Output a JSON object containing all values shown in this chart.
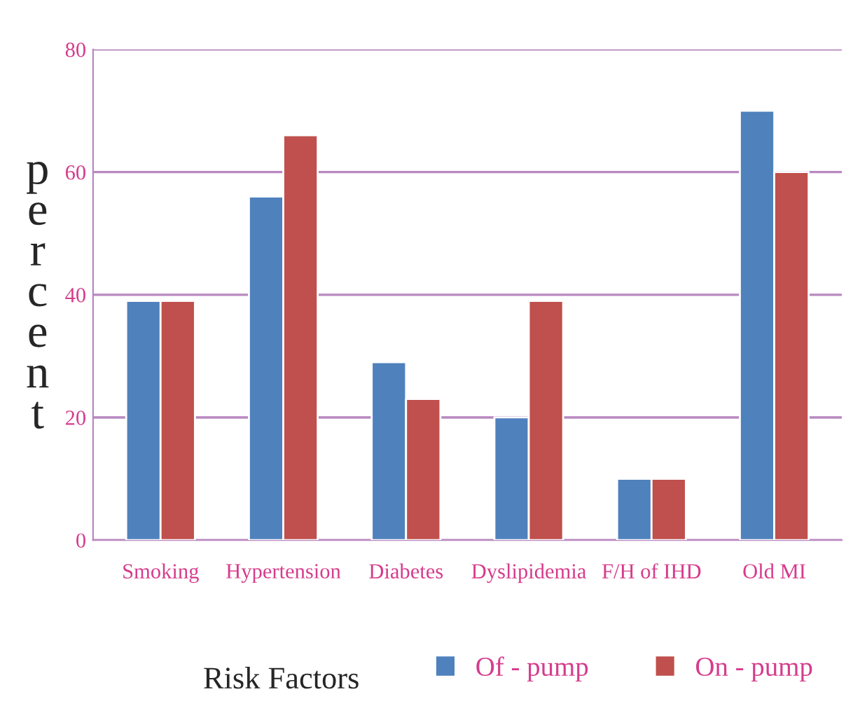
{
  "chart_data": {
    "type": "bar",
    "xlabel": "Risk Factors",
    "ylabel": "percent",
    "categories": [
      "Smoking",
      "Hypertension",
      "Diabetes",
      "Dyslipidemia",
      "F/H of IHD",
      "Old MI"
    ],
    "series": [
      {
        "name": "Of - pump",
        "color": "#4f81bd",
        "values": [
          39,
          56,
          29,
          20,
          10,
          70
        ]
      },
      {
        "name": "On - pump",
        "color": "#c0504d",
        "values": [
          39,
          66,
          23,
          39,
          10,
          60
        ]
      }
    ],
    "ylim": [
      0,
      80
    ],
    "yticks": [
      0,
      20,
      40,
      60,
      80
    ],
    "grid": "y",
    "legend": "bottom"
  }
}
